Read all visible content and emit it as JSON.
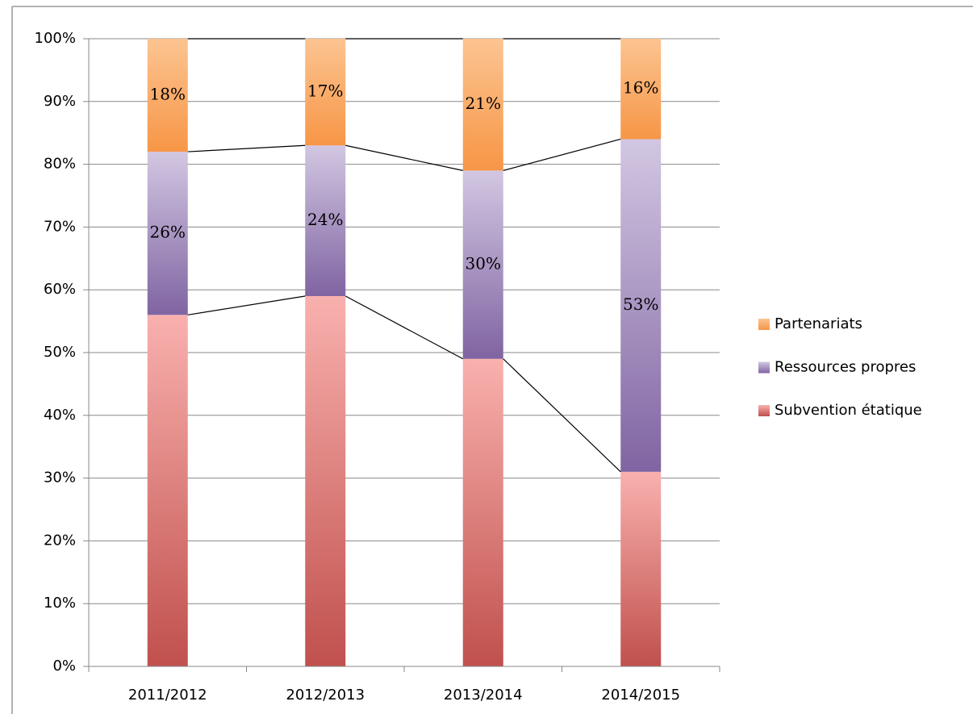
{
  "chart_data": {
    "type": "stacked_bar",
    "categories": [
      "2011/2012",
      "2012/2013",
      "2013/2014",
      "2014/2015"
    ],
    "series": [
      {
        "name": "Subvention étatique",
        "color": "#c0504d",
        "light": "#f9b1ae",
        "values": [
          56,
          59,
          49,
          31
        ]
      },
      {
        "name": "Ressources propres",
        "color": "#8064a2",
        "light": "#d2c7e2",
        "values": [
          26,
          24,
          30,
          53
        ],
        "value_labels": [
          "26%",
          "24%",
          "30%",
          "53%"
        ]
      },
      {
        "name": "Partenariats",
        "color": "#f79646",
        "light": "#fcc491",
        "values": [
          18,
          17,
          21,
          16
        ],
        "value_labels": [
          "18%",
          "17%",
          "21%",
          "16%"
        ]
      }
    ],
    "ylim": [
      0,
      100
    ],
    "yticks": [
      {
        "value": 0,
        "label": "0%"
      },
      {
        "value": 10,
        "label": "10%"
      },
      {
        "value": 20,
        "label": "20%"
      },
      {
        "value": 30,
        "label": "30%"
      },
      {
        "value": 40,
        "label": "40%"
      },
      {
        "value": 50,
        "label": "50%"
      },
      {
        "value": 60,
        "label": "60%"
      },
      {
        "value": 70,
        "label": "70%"
      },
      {
        "value": 80,
        "label": "80%"
      },
      {
        "value": 90,
        "label": "90%"
      },
      {
        "value": 100,
        "label": "100%"
      }
    ],
    "grid": true,
    "legend": "right",
    "series_lines": true
  }
}
